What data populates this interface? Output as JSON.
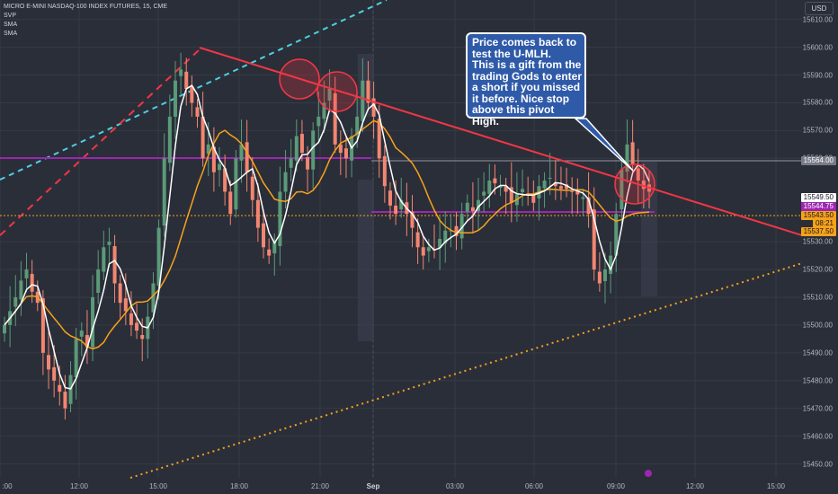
{
  "legend": {
    "symbol": "MICRO E-MINI NASDAQ-100 INDEX FUTURES, 15, CME",
    "indicators": [
      "SVP",
      "SMA",
      "SMA"
    ]
  },
  "currency": "USD",
  "annotation": {
    "lines": [
      "Price comes back to",
      "test the U-MLH.",
      "This is a gift from the",
      "trading Gods to enter",
      "a short if you missed",
      "it before. Nice stop",
      "above this pivot",
      "High."
    ]
  },
  "colors": {
    "background": "#2a2e39",
    "up_candle": "#5b9a78",
    "down_candle": "#f38670",
    "sma_fast": "#ffffff",
    "sma_slow": "#f7a21b",
    "trendline": "#f23645",
    "level_line": "#9c27b0",
    "support_dotted": "#f7a21b",
    "channel_dashed": "#4dd0e1"
  },
  "price_scale": {
    "ticks": [
      "15610.00",
      "15600.00",
      "15590.00",
      "15580.00",
      "15570.00",
      "15560.00",
      "15530.00",
      "15520.00",
      "15510.00",
      "15500.00",
      "15490.00",
      "15480.00",
      "15470.00",
      "15460.00",
      "15450.00"
    ],
    "badges": {
      "level": "15564.00",
      "last": "15549.50",
      "purple_level": "15544.75",
      "current": "15543.50",
      "countdown": "08:21",
      "sma": "15537.50"
    }
  },
  "time_scale": {
    "ticks": [
      ":00",
      "12:00",
      "15:00",
      "18:00",
      "21:00",
      "Sep",
      "03:00",
      "06:00",
      "09:00",
      "12:00",
      "15:00"
    ]
  },
  "chart_data": {
    "type": "candlestick",
    "symbol": "MICRO E-MINI NASDAQ-100 INDEX FUTURES",
    "interval": "15",
    "exchange": "CME",
    "ylim": [
      15445,
      15617
    ],
    "levels": {
      "horizontal_gray": 15564.0,
      "purple_right": 15544.75,
      "last_price": 15543.5,
      "sma_slow_last": 15537.5
    },
    "closes": [
      15500,
      15505,
      15510,
      15516,
      15520,
      15512,
      15508,
      15490,
      15484,
      15480,
      15476,
      15470,
      15482,
      15495,
      15498,
      15492,
      15510,
      15520,
      15528,
      15530,
      15515,
      15508,
      15505,
      15500,
      15498,
      15495,
      15503,
      15515,
      15535,
      15560,
      15575,
      15588,
      15592,
      15585,
      15580,
      15575,
      15560,
      15565,
      15555,
      15558,
      15548,
      15540,
      15560,
      15565,
      15555,
      15545,
      15535,
      15528,
      15525,
      15530,
      15548,
      15555,
      15560,
      15568,
      15562,
      15556,
      15570,
      15575,
      15580,
      15585,
      15565,
      15562,
      15560,
      15568,
      15575,
      15588,
      15580,
      15575,
      15560,
      15550,
      15543,
      15540,
      15545,
      15540,
      15535,
      15528,
      15525,
      15528,
      15527,
      15531,
      15534,
      15534,
      15532,
      15540,
      15544,
      15541,
      15545,
      15548,
      15552,
      15551,
      15550,
      15548,
      15544,
      15547,
      15549,
      15547,
      15544,
      15550,
      15552,
      15553,
      15550,
      15549,
      15549,
      15548,
      15547,
      15546,
      15540,
      15520,
      15515,
      15520,
      15525,
      15540,
      15556,
      15565,
      15558,
      15552,
      15549,
      15548
    ]
  }
}
